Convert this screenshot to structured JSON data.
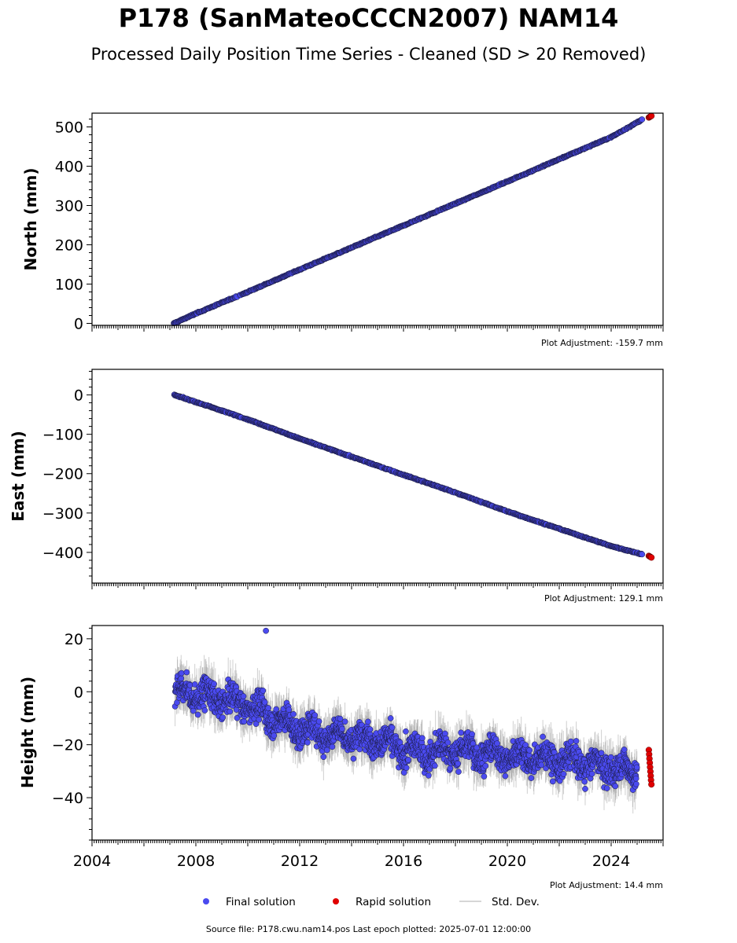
{
  "header": {
    "title": "P178 (SanMateoCCCN2007) NAM14",
    "subtitle": "Processed Daily Position Time Series - Cleaned (SD > 20 Removed)"
  },
  "footer": {
    "source": "Source file: P178.cwu.nam14.pos  Last epoch plotted: 2025-07-01 12:00:00"
  },
  "legend": {
    "final": "Final solution",
    "rapid": "Rapid solution",
    "std": "Std. Dev."
  },
  "colors": {
    "final": "#4a4aef",
    "final_edge": "#1a1a3a",
    "rapid": "#e00000",
    "std": "#a8a8a8"
  },
  "chart_data": [
    {
      "type": "scatter",
      "ylabel": "North (mm)",
      "adjustment": "Plot Adjustment: -159.7 mm",
      "xlim": [
        2004,
        2026
      ],
      "ylim": [
        -5,
        535
      ],
      "yticks": [
        0,
        100,
        200,
        300,
        400,
        500
      ],
      "series": [
        {
          "name": "Final solution",
          "x": [
            2007.15,
            2008,
            2010,
            2012,
            2014,
            2016,
            2018,
            2020,
            2022,
            2024,
            2025.2
          ],
          "y": [
            0,
            25,
            80,
            137,
            193,
            249,
            305,
            361,
            418,
            474,
            519
          ]
        },
        {
          "name": "Rapid solution",
          "x": [
            2025.3,
            2025.5
          ],
          "y": [
            524,
            528
          ]
        }
      ]
    },
    {
      "type": "scatter",
      "ylabel": "East (mm)",
      "adjustment": "Plot Adjustment: 129.1 mm",
      "xlim": [
        2004,
        2026
      ],
      "ylim": [
        -478,
        65
      ],
      "yticks": [
        0,
        -100,
        -200,
        -300,
        -400
      ],
      "series": [
        {
          "name": "Final solution",
          "x": [
            2007.15,
            2008,
            2010,
            2012,
            2014,
            2016,
            2018,
            2020,
            2022,
            2024,
            2025.2
          ],
          "y": [
            0,
            -18,
            -62,
            -111,
            -157,
            -203,
            -248,
            -296,
            -340,
            -384,
            -405
          ]
        },
        {
          "name": "Rapid solution",
          "x": [
            2025.3,
            2025.5
          ],
          "y": [
            -409,
            -413
          ]
        }
      ]
    },
    {
      "type": "scatter",
      "ylabel": "Height (mm)",
      "adjustment": "Plot Adjustment: 14.4 mm",
      "xlim": [
        2004,
        2026
      ],
      "ylim": [
        -56,
        25
      ],
      "yticks": [
        20,
        0,
        -20,
        -40
      ],
      "xticks": [
        2004,
        2008,
        2012,
        2016,
        2020,
        2024
      ],
      "series": [
        {
          "name": "Final solution",
          "x": [
            2007.2,
            2008,
            2009,
            2010,
            2011,
            2012,
            2013,
            2014,
            2015,
            2016,
            2017,
            2018,
            2019,
            2020,
            2021,
            2022,
            2023,
            2024,
            2025
          ],
          "y": [
            0,
            -1,
            -3,
            -5,
            -10,
            -14,
            -16,
            -17,
            -18,
            -22,
            -23,
            -22,
            -23,
            -24,
            -25,
            -26,
            -27,
            -29,
            -30
          ]
        },
        {
          "name": "Rapid solution",
          "x": [
            2025.3,
            2025.5
          ],
          "y": [
            -22,
            -35
          ]
        }
      ]
    }
  ]
}
